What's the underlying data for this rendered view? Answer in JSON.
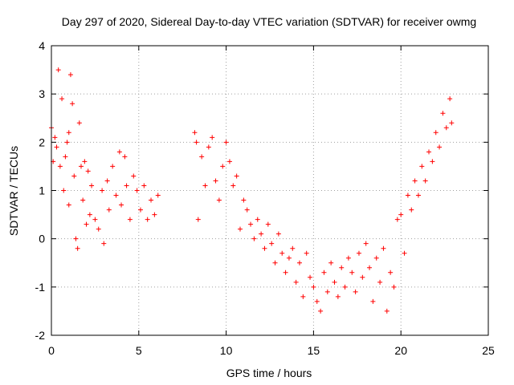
{
  "chart_data": {
    "type": "scatter",
    "title": "Day 297 of 2020, Sidereal Day-to-day VTEC variation (SDTVAR) for receiver owmg",
    "xlabel": "GPS time / hours",
    "ylabel": "SDTVAR / TECUs",
    "xlim": [
      0,
      25
    ],
    "ylim": [
      -2,
      4
    ],
    "xticks": [
      "0",
      "5",
      "10",
      "15",
      "20",
      "25"
    ],
    "yticks": [
      "-2",
      "-1",
      "0",
      "1",
      "2",
      "3",
      "4"
    ],
    "grid": true,
    "marker": "+",
    "color": "#ff0000",
    "series": [
      {
        "name": "SDTVAR",
        "points": [
          [
            0.0,
            2.3
          ],
          [
            0.1,
            1.6
          ],
          [
            0.2,
            2.1
          ],
          [
            0.3,
            1.9
          ],
          [
            0.4,
            3.5
          ],
          [
            0.5,
            1.5
          ],
          [
            0.6,
            2.9
          ],
          [
            0.7,
            1.0
          ],
          [
            0.8,
            1.7
          ],
          [
            0.9,
            2.0
          ],
          [
            1.0,
            0.7
          ],
          [
            1.0,
            2.2
          ],
          [
            1.1,
            3.4
          ],
          [
            1.2,
            2.8
          ],
          [
            1.3,
            1.3
          ],
          [
            1.4,
            0.0
          ],
          [
            1.5,
            -0.2
          ],
          [
            1.6,
            2.4
          ],
          [
            1.7,
            1.5
          ],
          [
            1.8,
            0.8
          ],
          [
            1.9,
            1.6
          ],
          [
            2.0,
            0.3
          ],
          [
            2.1,
            1.4
          ],
          [
            2.2,
            0.5
          ],
          [
            2.3,
            1.1
          ],
          [
            2.5,
            0.4
          ],
          [
            2.7,
            0.2
          ],
          [
            2.9,
            1.0
          ],
          [
            3.0,
            -0.1
          ],
          [
            3.2,
            1.2
          ],
          [
            3.3,
            0.6
          ],
          [
            3.5,
            1.5
          ],
          [
            3.7,
            0.9
          ],
          [
            3.9,
            1.8
          ],
          [
            4.0,
            0.7
          ],
          [
            4.2,
            1.7
          ],
          [
            4.3,
            1.1
          ],
          [
            4.5,
            0.4
          ],
          [
            4.7,
            1.3
          ],
          [
            4.9,
            1.0
          ],
          [
            5.1,
            0.6
          ],
          [
            5.3,
            1.1
          ],
          [
            5.5,
            0.4
          ],
          [
            5.7,
            0.8
          ],
          [
            5.9,
            0.5
          ],
          [
            6.1,
            0.9
          ],
          [
            8.2,
            2.2
          ],
          [
            8.3,
            2.0
          ],
          [
            8.4,
            0.4
          ],
          [
            8.6,
            1.7
          ],
          [
            8.8,
            1.1
          ],
          [
            9.0,
            1.9
          ],
          [
            9.2,
            2.1
          ],
          [
            9.4,
            1.2
          ],
          [
            9.6,
            0.8
          ],
          [
            9.8,
            1.5
          ],
          [
            10.0,
            2.0
          ],
          [
            10.2,
            1.6
          ],
          [
            10.4,
            1.1
          ],
          [
            10.6,
            1.3
          ],
          [
            10.8,
            0.2
          ],
          [
            11.0,
            0.8
          ],
          [
            11.2,
            0.6
          ],
          [
            11.4,
            0.3
          ],
          [
            11.6,
            0.0
          ],
          [
            11.8,
            0.4
          ],
          [
            12.0,
            0.1
          ],
          [
            12.2,
            -0.2
          ],
          [
            12.4,
            0.3
          ],
          [
            12.6,
            -0.1
          ],
          [
            12.8,
            -0.5
          ],
          [
            13.0,
            0.1
          ],
          [
            13.2,
            -0.3
          ],
          [
            13.4,
            -0.7
          ],
          [
            13.6,
            -0.4
          ],
          [
            13.8,
            -0.2
          ],
          [
            14.0,
            -0.9
          ],
          [
            14.2,
            -0.5
          ],
          [
            14.4,
            -1.2
          ],
          [
            14.6,
            -0.3
          ],
          [
            14.8,
            -0.8
          ],
          [
            15.0,
            -1.0
          ],
          [
            15.2,
            -1.3
          ],
          [
            15.4,
            -1.5
          ],
          [
            15.6,
            -0.7
          ],
          [
            15.8,
            -1.1
          ],
          [
            16.0,
            -0.5
          ],
          [
            16.2,
            -0.9
          ],
          [
            16.4,
            -1.2
          ],
          [
            16.6,
            -0.6
          ],
          [
            16.8,
            -1.0
          ],
          [
            17.0,
            -0.4
          ],
          [
            17.2,
            -0.7
          ],
          [
            17.4,
            -1.1
          ],
          [
            17.6,
            -0.3
          ],
          [
            17.8,
            -0.8
          ],
          [
            18.0,
            -0.1
          ],
          [
            18.2,
            -0.6
          ],
          [
            18.4,
            -1.3
          ],
          [
            18.6,
            -0.4
          ],
          [
            18.8,
            -0.9
          ],
          [
            19.0,
            -0.2
          ],
          [
            19.2,
            -1.5
          ],
          [
            19.4,
            -0.7
          ],
          [
            19.6,
            -1.0
          ],
          [
            19.8,
            0.4
          ],
          [
            20.0,
            0.5
          ],
          [
            20.2,
            -0.3
          ],
          [
            20.4,
            0.9
          ],
          [
            20.6,
            0.6
          ],
          [
            20.8,
            1.2
          ],
          [
            21.0,
            0.9
          ],
          [
            21.2,
            1.5
          ],
          [
            21.4,
            1.2
          ],
          [
            21.6,
            1.8
          ],
          [
            21.8,
            1.6
          ],
          [
            22.0,
            2.2
          ],
          [
            22.2,
            1.9
          ],
          [
            22.4,
            2.6
          ],
          [
            22.6,
            2.3
          ],
          [
            22.8,
            2.9
          ],
          [
            22.9,
            2.4
          ]
        ]
      }
    ]
  }
}
